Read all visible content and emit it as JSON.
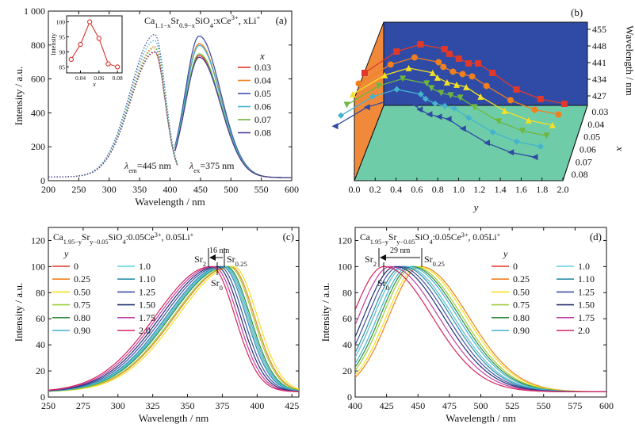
{
  "chart_data": [
    {
      "panel": "(a)",
      "type": "line",
      "title": "Ca1.1−xSr0.9−xSiO4:xCe3+, xLi+",
      "xlabel": "Wavelength / nm",
      "ylabel": "Intensity / a.u.",
      "xlim": [
        200,
        600
      ],
      "ylim": [
        0,
        1000
      ],
      "xticks": [
        200,
        250,
        300,
        350,
        400,
        450,
        500,
        550,
        600
      ],
      "yticks": [
        0,
        200,
        400,
        600,
        800,
        1000
      ],
      "ytick_labels": [
        "0",
        "200",
        "400",
        "600",
        "800",
        "1 000"
      ],
      "legend_title": "x",
      "legend_position": "right",
      "annotations": {
        "em_label": "λem=445 nm",
        "ex_label": "λex=375 nm"
      },
      "series": [
        {
          "name": "0.03",
          "color": "#e0392b",
          "excitation_peak": [
            375,
            735
          ],
          "emission_peak": [
            448,
            720
          ]
        },
        {
          "name": "0.04",
          "color": "#f07f1e",
          "excitation_peak": [
            375,
            770
          ],
          "emission_peak": [
            448,
            790
          ]
        },
        {
          "name": "0.05",
          "color": "#3f51a8",
          "excitation_peak": [
            375,
            840
          ],
          "emission_peak": [
            448,
            835
          ]
        },
        {
          "name": "0.06",
          "color": "#43b3cf",
          "excitation_peak": [
            375,
            805
          ],
          "emission_peak": [
            448,
            780
          ]
        },
        {
          "name": "0.07",
          "color": "#6fb63f",
          "excitation_peak": [
            375,
            760
          ],
          "emission_peak": [
            448,
            730
          ]
        },
        {
          "name": "0.08",
          "color": "#4a3f96",
          "excitation_peak": [
            375,
            740
          ],
          "emission_peak": [
            448,
            710
          ]
        }
      ],
      "inset": {
        "type": "line",
        "xlabel": "x",
        "ylabel": "Intensity",
        "xlim": [
          0.025,
          0.085
        ],
        "ylim": [
          83,
          102
        ],
        "xticks": [
          0.04,
          0.06,
          0.08
        ],
        "yticks": [
          85,
          90,
          95,
          100
        ],
        "x": [
          0.03,
          0.04,
          0.05,
          0.06,
          0.07,
          0.08
        ],
        "y": [
          87.5,
          92.5,
          100,
          94.5,
          86,
          85
        ]
      }
    },
    {
      "panel": "(b)",
      "type": "line",
      "xlabel": "y",
      "ylabel": "Wavelength / nm",
      "depth_label": "x",
      "xlim": [
        0,
        2.0
      ],
      "xticks": [
        "0.0",
        "0.2",
        "0.4",
        "0.6",
        "0.8",
        "1.0",
        "1.2",
        "1.4",
        "1.6",
        "1.8",
        "2.0"
      ],
      "zlim": [
        423,
        458
      ],
      "zticks": [
        427,
        434,
        441,
        448,
        455
      ],
      "depth_ticks": [
        "0.03",
        "0.04",
        "0.05",
        "0.06",
        "0.07",
        "0.08"
      ],
      "y_values": [
        0,
        0.25,
        0.5,
        0.75,
        0.8,
        0.9,
        1.0,
        1.1,
        1.25,
        1.5,
        1.75,
        2.0
      ],
      "series": [
        {
          "name": "0.03",
          "color": "#e0392b",
          "marker": "square",
          "values": [
            440,
            449,
            452,
            450,
            448,
            446,
            444,
            444,
            440,
            433,
            429,
            427
          ]
        },
        {
          "name": "0.04",
          "color": "#f07f1e",
          "marker": "circle",
          "values": [
            439,
            447,
            450,
            448,
            446,
            444,
            443,
            442,
            438,
            432,
            428,
            426
          ]
        },
        {
          "name": "0.05",
          "color": "#f4e024",
          "marker": "triangle-up",
          "values": [
            438,
            446,
            449,
            447,
            445,
            443,
            442,
            441,
            437,
            431,
            427,
            425
          ]
        },
        {
          "name": "0.06",
          "color": "#6fb63f",
          "marker": "triangle-down",
          "values": [
            437,
            445,
            448,
            446,
            444,
            442,
            441,
            440,
            436,
            430,
            426,
            424
          ]
        },
        {
          "name": "0.07",
          "color": "#43b3cf",
          "marker": "diamond",
          "values": [
            436,
            444,
            447,
            445,
            443,
            441,
            440,
            439,
            435,
            429,
            425,
            423
          ]
        },
        {
          "name": "0.08",
          "color": "#2f4aa0",
          "marker": "triangle-left",
          "values": [
            435,
            443,
            446,
            444,
            442,
            440,
            439,
            438,
            434,
            428,
            424,
            422
          ]
        }
      ]
    },
    {
      "panel": "(c)",
      "type": "line",
      "title": "Ca1.95−ySry−0.05SiO4:0.05Ce3+, 0.05Li+",
      "xlabel": "Wavelength / nm",
      "ylabel": "Intensity / a.u.",
      "xlim": [
        250,
        430
      ],
      "ylim": [
        0,
        130
      ],
      "xticks": [
        250,
        275,
        300,
        325,
        350,
        375,
        400,
        425
      ],
      "yticks": [
        0,
        20,
        40,
        60,
        80,
        100,
        120
      ],
      "legend_title": "y",
      "annotations": {
        "shift": "16 nm",
        "sr2": "Sr2",
        "sr025": "Sr0.25",
        "sr0": "Sr0"
      },
      "series": [
        {
          "name": "0",
          "color": "#e0392b",
          "peak": 376
        },
        {
          "name": "0.25",
          "color": "#f07f1e",
          "peak": 381
        },
        {
          "name": "0.50",
          "color": "#f4e024",
          "peak": 383
        },
        {
          "name": "0.75",
          "color": "#9ccc3c",
          "peak": 380
        },
        {
          "name": "0.80",
          "color": "#2e8b3c",
          "peak": 378
        },
        {
          "name": "0.90",
          "color": "#43b3cf",
          "peak": 377
        },
        {
          "name": "1.0",
          "color": "#5fd0e0",
          "peak": 376
        },
        {
          "name": "1.10",
          "color": "#2a8fa8",
          "peak": 375
        },
        {
          "name": "1.25",
          "color": "#3f51a8",
          "peak": 373
        },
        {
          "name": "1.50",
          "color": "#22306f",
          "peak": 371
        },
        {
          "name": "1.75",
          "color": "#c23fa6",
          "peak": 369
        },
        {
          "name": "2.0",
          "color": "#d6245b",
          "peak": 367
        }
      ]
    },
    {
      "panel": "(d)",
      "type": "line",
      "title": "Ca1.95−ySry−0.05SiO4:0.05Ce3+, 0.05Li+",
      "xlabel": "Wavelength / nm",
      "ylabel": "Intensity / a.u.",
      "xlim": [
        400,
        600
      ],
      "ylim": [
        0,
        130
      ],
      "xticks": [
        400,
        425,
        450,
        475,
        500,
        525,
        550,
        575,
        600
      ],
      "yticks": [
        0,
        20,
        40,
        60,
        80,
        100,
        120
      ],
      "legend_title": "y",
      "annotations": {
        "shift": "29 nm",
        "sr2": "Sr2",
        "sr025": "Sr0.25",
        "sr0": "Sr0"
      },
      "series": [
        {
          "name": "0",
          "color": "#e0392b",
          "peak": 440
        },
        {
          "name": "0.25",
          "color": "#f07f1e",
          "peak": 452
        },
        {
          "name": "0.50",
          "color": "#f4e024",
          "peak": 450
        },
        {
          "name": "0.75",
          "color": "#9ccc3c",
          "peak": 447
        },
        {
          "name": "0.80",
          "color": "#2e8b3c",
          "peak": 445
        },
        {
          "name": "0.90",
          "color": "#43b3cf",
          "peak": 443
        },
        {
          "name": "1.0",
          "color": "#5fd0e0",
          "peak": 440
        },
        {
          "name": "1.10",
          "color": "#2a8fa8",
          "peak": 438
        },
        {
          "name": "1.25",
          "color": "#3f51a8",
          "peak": 435
        },
        {
          "name": "1.50",
          "color": "#22306f",
          "peak": 432
        },
        {
          "name": "1.75",
          "color": "#c23fa6",
          "peak": 428
        },
        {
          "name": "2.0",
          "color": "#d6245b",
          "peak": 423
        }
      ]
    }
  ]
}
